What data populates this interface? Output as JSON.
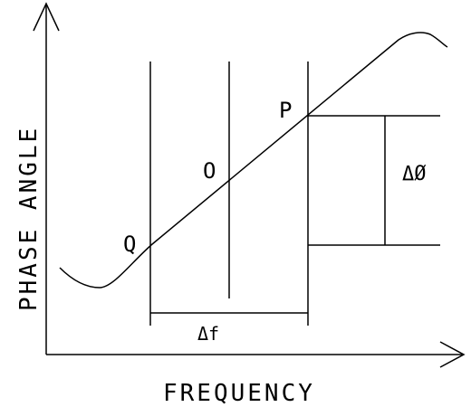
{
  "axes": {
    "x_label": "FREQUENCY",
    "y_label": "PHASE ANGLE"
  },
  "points": {
    "p": "P",
    "o": "O",
    "q": "Q"
  },
  "annotations": {
    "delta_phi": "ΔØ",
    "delta_f": "Δf"
  }
}
